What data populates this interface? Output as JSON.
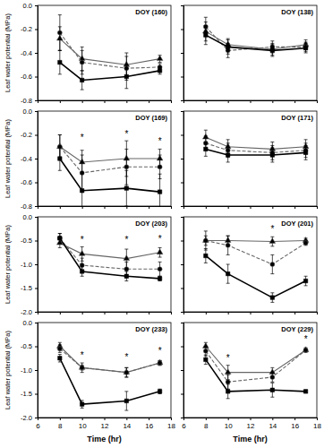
{
  "chart_data": [
    {
      "type": "line",
      "title": "DOY (160)",
      "y_label": "Leaf water potential (MPa)",
      "tick_labels": "y",
      "x": [
        8,
        10,
        14,
        17
      ],
      "xlim": [
        6,
        18
      ],
      "xticks": [
        6,
        8,
        10,
        12,
        14,
        16,
        18
      ],
      "ylim": [
        -0.8,
        0
      ],
      "yticks": [
        {
          "value": 0,
          "label": "0.0"
        },
        -0.2,
        -0.4,
        -0.6,
        -0.8
      ],
      "series": [
        {
          "color": "#666666",
          "marker": "triangle",
          "line_style": "solid",
          "values": [
            -0.28,
            -0.45,
            -0.5,
            -0.45
          ],
          "errors": [
            0.1,
            0.1,
            0.1,
            0.03
          ]
        },
        {
          "color": "#666666",
          "marker": "circle",
          "line_style": "dashed",
          "values": [
            -0.23,
            -0.48,
            -0.53,
            -0.52
          ],
          "errors": [
            0.15,
            0.1,
            0.1,
            0.03
          ]
        },
        {
          "color": "#000000",
          "marker": "square",
          "line_style": "solid",
          "values": [
            -0.48,
            -0.63,
            -0.6,
            -0.55
          ],
          "errors": [
            0.1,
            0.08,
            0.1,
            0.03
          ]
        }
      ]
    },
    {
      "type": "line",
      "title": "DOY (138)",
      "tick_labels": false,
      "x": [
        8,
        10,
        14,
        17
      ],
      "xlim": [
        6,
        18
      ],
      "xticks": [
        6,
        8,
        10,
        12,
        14,
        16,
        18
      ],
      "ylim": [
        -0.8,
        0
      ],
      "yticks": [
        {
          "value": 0,
          "label": "0.0"
        },
        -0.2,
        -0.4,
        -0.6,
        -0.8
      ],
      "series": [
        {
          "color": "#666666",
          "marker": "triangle",
          "line_style": "solid",
          "values": [
            -0.22,
            -0.33,
            -0.37,
            -0.33
          ],
          "errors": [
            0.08,
            0.05,
            0.05,
            0.04
          ]
        },
        {
          "color": "#666666",
          "marker": "circle",
          "line_style": "dashed",
          "values": [
            -0.18,
            -0.38,
            -0.35,
            -0.35
          ],
          "errors": [
            0.08,
            0.06,
            0.05,
            0.04
          ]
        },
        {
          "color": "#000000",
          "marker": "square",
          "line_style": "solid",
          "values": [
            -0.25,
            -0.35,
            -0.38,
            -0.36
          ],
          "errors": [
            0.08,
            0.06,
            0.05,
            0.04
          ]
        }
      ]
    },
    {
      "type": "line",
      "title": "DOY (169)",
      "y_label": "Leaf water potential (MPa)",
      "tick_labels": "y",
      "x": [
        8,
        10,
        14,
        17
      ],
      "xlim": [
        6,
        18
      ],
      "xticks": [
        6,
        8,
        10,
        12,
        14,
        16,
        18
      ],
      "ylim": [
        -0.8,
        0
      ],
      "yticks": [
        {
          "value": 0,
          "label": "0.0"
        },
        -0.2,
        -0.4,
        -0.6,
        -0.8
      ],
      "series": [
        {
          "color": "#666666",
          "marker": "triangle",
          "line_style": "solid",
          "values": [
            -0.3,
            -0.43,
            -0.4,
            -0.4
          ],
          "errors": [
            0.1,
            0.1,
            0.15,
            0.08
          ]
        },
        {
          "color": "#666666",
          "marker": "circle",
          "line_style": "dashed",
          "values": [
            -0.3,
            -0.52,
            -0.47,
            -0.47
          ],
          "errors": [
            0.1,
            0.15,
            0.15,
            0.1
          ]
        },
        {
          "color": "#000000",
          "marker": "square",
          "line_style": "solid",
          "values": [
            -0.4,
            -0.67,
            -0.65,
            -0.68
          ],
          "errors": [
            0.1,
            0.15,
            0.15,
            0.15
          ]
        }
      ],
      "annotations": [
        {
          "text": "*",
          "x": 10,
          "y": -0.25
        },
        {
          "text": "*",
          "x": 14,
          "y": -0.22
        },
        {
          "text": "*",
          "x": 17,
          "y": -0.28
        }
      ]
    },
    {
      "type": "line",
      "title": "DOY (171)",
      "tick_labels": false,
      "x": [
        8,
        10,
        14,
        17
      ],
      "xlim": [
        6,
        18
      ],
      "xticks": [
        6,
        8,
        10,
        12,
        14,
        16,
        18
      ],
      "ylim": [
        -0.8,
        0
      ],
      "yticks": [
        {
          "value": 0,
          "label": "0.0"
        },
        -0.2,
        -0.4,
        -0.6,
        -0.8
      ],
      "series": [
        {
          "color": "#666666",
          "marker": "triangle",
          "line_style": "solid",
          "values": [
            -0.22,
            -0.3,
            -0.32,
            -0.3
          ],
          "errors": [
            0.06,
            0.06,
            0.06,
            0.06
          ]
        },
        {
          "color": "#666666",
          "marker": "circle",
          "line_style": "dashed",
          "values": [
            -0.27,
            -0.33,
            -0.35,
            -0.33
          ],
          "errors": [
            0.06,
            0.06,
            0.06,
            0.06
          ]
        },
        {
          "color": "#000000",
          "marker": "square",
          "line_style": "solid",
          "values": [
            -0.32,
            -0.37,
            -0.37,
            -0.35
          ],
          "errors": [
            0.06,
            0.06,
            0.06,
            0.06
          ]
        }
      ]
    },
    {
      "type": "line",
      "title": "DOY (203)",
      "y_label": "Leaf water potential (MPa)",
      "tick_labels": "y",
      "x": [
        8,
        10,
        14,
        17
      ],
      "xlim": [
        6,
        18
      ],
      "xticks": [
        6,
        8,
        10,
        12,
        14,
        16,
        18
      ],
      "ylim": [
        -2,
        0
      ],
      "yticks": [
        {
          "value": 0,
          "label": "0.0"
        },
        -0.5,
        {
          "value": -1,
          "label": "-1.0"
        },
        -1.5,
        {
          "value": -2,
          "label": "-2.0"
        }
      ],
      "series": [
        {
          "color": "#666666",
          "marker": "triangle",
          "line_style": "solid",
          "values": [
            -0.55,
            -0.78,
            -0.88,
            -0.75
          ],
          "errors": [
            0.1,
            0.15,
            0.2,
            0.1
          ]
        },
        {
          "color": "#666666",
          "marker": "circle",
          "line_style": "dashed",
          "values": [
            -0.45,
            -1.02,
            -1.1,
            -1.1
          ],
          "errors": [
            0.1,
            0.15,
            0.15,
            0.15
          ]
        },
        {
          "color": "#000000",
          "marker": "square",
          "line_style": "solid",
          "values": [
            -0.45,
            -1.15,
            -1.25,
            -1.3
          ],
          "errors": [
            0.1,
            0.1,
            0.1,
            0.05
          ]
        }
      ],
      "annotations": [
        {
          "text": "*",
          "x": 10,
          "y": -0.55
        },
        {
          "text": "*",
          "x": 14,
          "y": -0.55
        },
        {
          "text": "*",
          "x": 17,
          "y": -0.52
        }
      ]
    },
    {
      "type": "line",
      "title": "DOY (201)",
      "tick_labels": false,
      "x": [
        8,
        10,
        14,
        17
      ],
      "xlim": [
        6,
        18
      ],
      "xticks": [
        6,
        8,
        10,
        12,
        14,
        16,
        18
      ],
      "ylim": [
        -2,
        0
      ],
      "yticks": [
        {
          "value": 0,
          "label": "0.0"
        },
        -0.5,
        {
          "value": -1,
          "label": "-1.0"
        },
        -1.5,
        {
          "value": -2,
          "label": "-2.0"
        }
      ],
      "series": [
        {
          "color": "#666666",
          "marker": "triangle",
          "line_style": "solid",
          "values": [
            -0.5,
            -0.5,
            -0.52,
            -0.5
          ],
          "errors": [
            0.1,
            0.1,
            0.1,
            0.05
          ]
        },
        {
          "color": "#666666",
          "marker": "circle",
          "line_style": "dashed",
          "values": [
            -0.5,
            -0.6,
            -1.0,
            -0.55
          ],
          "errors": [
            0.2,
            0.2,
            0.2,
            0.05
          ]
        },
        {
          "color": "#000000",
          "marker": "square",
          "line_style": "solid",
          "values": [
            -0.82,
            -1.2,
            -1.7,
            -1.35
          ],
          "errors": [
            0.15,
            0.2,
            0.1,
            0.1
          ]
        }
      ],
      "annotations": [
        {
          "text": "*",
          "x": 14,
          "y": -0.32
        }
      ]
    },
    {
      "type": "line",
      "title": "DOY (233)",
      "y_label": "Leaf water potential (MPa)",
      "x_label": "Time (hr)",
      "x": [
        8,
        10,
        14,
        17
      ],
      "xlim": [
        6,
        18
      ],
      "xticks": [
        6,
        8,
        10,
        12,
        14,
        16,
        18
      ],
      "ylim": [
        -2,
        0
      ],
      "yticks": [
        {
          "value": 0,
          "label": "0.0"
        },
        -0.5,
        {
          "value": -1,
          "label": "-1.0"
        },
        -1.5,
        {
          "value": -2,
          "label": "-2.0"
        }
      ],
      "series": [
        {
          "color": "#666666",
          "marker": "triangle",
          "line_style": "solid",
          "values": [
            -0.5,
            -0.95,
            -1.05,
            -0.85
          ],
          "errors": [
            0.08,
            0.05,
            0.1,
            0.05
          ]
        },
        {
          "color": "#666666",
          "marker": "circle",
          "line_style": "dashed",
          "values": [
            -0.55,
            -0.95,
            -1.05,
            -0.85
          ],
          "errors": [
            0.08,
            0.1,
            0.1,
            0.05
          ]
        },
        {
          "color": "#000000",
          "marker": "square",
          "line_style": "solid",
          "values": [
            -0.75,
            -1.72,
            -1.65,
            -1.45
          ],
          "errors": [
            0.08,
            0.08,
            0.2,
            0.05
          ]
        }
      ],
      "annotations": [
        {
          "text": "*",
          "x": 10,
          "y": -0.75
        },
        {
          "text": "*",
          "x": 14,
          "y": -0.8
        },
        {
          "text": "*",
          "x": 17,
          "y": -0.66
        }
      ]
    },
    {
      "type": "line",
      "title": "DOY (229)",
      "x_label": "Time (hr)",
      "tick_labels": "x",
      "x": [
        8,
        10,
        14,
        17
      ],
      "xlim": [
        6,
        18
      ],
      "xticks": [
        6,
        8,
        10,
        12,
        14,
        16,
        18
      ],
      "ylim": [
        -2,
        0
      ],
      "yticks": [
        {
          "value": 0,
          "label": "0.0"
        },
        -0.5,
        {
          "value": -1,
          "label": "-1.0"
        },
        -1.5,
        {
          "value": -2,
          "label": "-2.0"
        }
      ],
      "series": [
        {
          "color": "#666666",
          "marker": "triangle",
          "line_style": "solid",
          "values": [
            -0.5,
            -1.05,
            -1.05,
            -0.58
          ],
          "errors": [
            0.08,
            0.15,
            0.1,
            0.05
          ]
        },
        {
          "color": "#666666",
          "marker": "circle",
          "line_style": "dashed",
          "values": [
            -0.6,
            -1.25,
            -1.15,
            -0.58
          ],
          "errors": [
            0.1,
            0.15,
            0.1,
            0.03
          ]
        },
        {
          "color": "#000000",
          "marker": "square",
          "line_style": "solid",
          "values": [
            -0.78,
            -1.45,
            -1.42,
            -1.45
          ],
          "errors": [
            0.1,
            0.15,
            0.15,
            0.03
          ]
        }
      ],
      "annotations": [
        {
          "text": "*",
          "x": 10,
          "y": -0.82
        },
        {
          "text": "*",
          "x": 17,
          "y": -0.42
        }
      ]
    }
  ]
}
